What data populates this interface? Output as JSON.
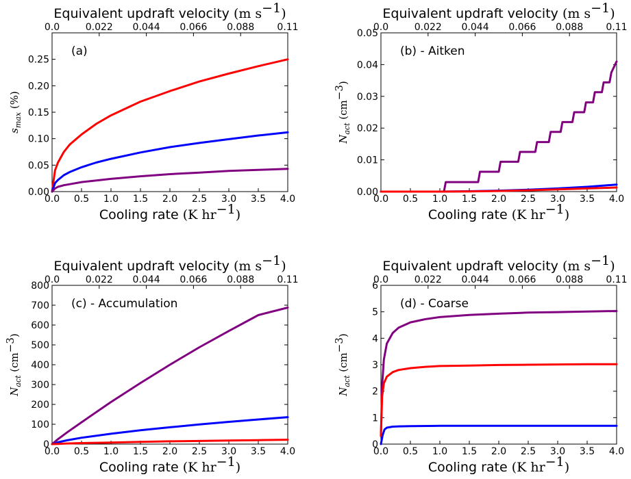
{
  "chart_data": [
    {
      "type": "line",
      "panel_label": "(a)",
      "xlabel": "Cooling rate",
      "xunit": "(K hr",
      "top_xlabel": "Equivalent updraft velocity",
      "top_xunit": "(m s",
      "ylabel_symbol": "s",
      "ylabel_sub": "max",
      "ylabel_unit": " (%)",
      "xlim": [
        0,
        4
      ],
      "ylim": [
        0,
        0.3
      ],
      "xticks": [
        "0.0",
        "0.5",
        "1.0",
        "1.5",
        "2.0",
        "2.5",
        "3.0",
        "3.5",
        "4.0"
      ],
      "yticks": [
        "0.00",
        "0.05",
        "0.10",
        "0.15",
        "0.20",
        "0.25"
      ],
      "ytick_values": [
        0,
        0.05,
        0.1,
        0.15,
        0.2,
        0.25
      ],
      "top_xticks": [
        "0.0",
        "0.022",
        "0.044",
        "0.066",
        "0.088",
        "0.11"
      ],
      "x": [
        0.0,
        0.05,
        0.1,
        0.2,
        0.3,
        0.5,
        0.75,
        1.0,
        1.5,
        2.0,
        2.5,
        3.0,
        3.5,
        4.0
      ],
      "series": [
        {
          "color": "#ff0000",
          "values": [
            0.0,
            0.04,
            0.055,
            0.075,
            0.089,
            0.108,
            0.128,
            0.144,
            0.17,
            0.19,
            0.208,
            0.223,
            0.237,
            0.25
          ]
        },
        {
          "color": "#0000ff",
          "values": [
            0.0,
            0.016,
            0.022,
            0.031,
            0.037,
            0.046,
            0.055,
            0.062,
            0.074,
            0.084,
            0.092,
            0.099,
            0.106,
            0.112
          ]
        },
        {
          "color": "#800080",
          "values": [
            0.0,
            0.006,
            0.009,
            0.012,
            0.014,
            0.018,
            0.021,
            0.024,
            0.029,
            0.033,
            0.036,
            0.039,
            0.041,
            0.043
          ]
        }
      ]
    },
    {
      "type": "line",
      "panel_label": "(b) - Aitken",
      "xlabel": "Cooling rate",
      "xunit": "(K hr",
      "top_xlabel": "Equivalent updraft velocity",
      "top_xunit": "(m s",
      "ylabel_symbol": "N",
      "ylabel_sub": "act",
      "ylabel_unit": " (cm",
      "xlim": [
        0,
        4
      ],
      "ylim": [
        0,
        0.05
      ],
      "xticks": [
        "0.0",
        "0.5",
        "1.0",
        "1.5",
        "2.0",
        "2.5",
        "3.0",
        "3.5",
        "4.0"
      ],
      "yticks": [
        "0.00",
        "0.01",
        "0.02",
        "0.03",
        "0.04",
        "0.05"
      ],
      "ytick_values": [
        0,
        0.01,
        0.02,
        0.03,
        0.04,
        0.05
      ],
      "top_xticks": [
        "0.0",
        "0.022",
        "0.044",
        "0.066",
        "0.088",
        "0.11"
      ],
      "series": [
        {
          "color": "#800080",
          "x": [
            0.0,
            1.07,
            1.1,
            1.65,
            1.68,
            2.0,
            2.03,
            2.33,
            2.36,
            2.62,
            2.65,
            2.85,
            2.88,
            3.05,
            3.08,
            3.25,
            3.28,
            3.45,
            3.48,
            3.6,
            3.63,
            3.75,
            3.78,
            3.88,
            3.91,
            4.0
          ],
          "values": [
            0.0,
            0.0,
            0.003,
            0.003,
            0.00625,
            0.00625,
            0.0094,
            0.0094,
            0.0125,
            0.0125,
            0.0156,
            0.0156,
            0.0188,
            0.0188,
            0.0219,
            0.0219,
            0.025,
            0.025,
            0.0281,
            0.0281,
            0.0313,
            0.0313,
            0.0344,
            0.0344,
            0.0375,
            0.041
          ]
        },
        {
          "color": "#0000ff",
          "x": [
            0.0,
            1.0,
            1.5,
            2.0,
            2.5,
            3.0,
            3.5,
            4.0
          ],
          "values": [
            0.0,
            0.0,
            0.0001,
            0.0003,
            0.0006,
            0.001,
            0.0015,
            0.0022
          ]
        },
        {
          "color": "#ff0000",
          "x": [
            0.0,
            1.0,
            1.5,
            2.0,
            2.5,
            3.0,
            3.5,
            4.0
          ],
          "values": [
            0.0,
            0.0,
            5e-05,
            0.0002,
            0.0004,
            0.0007,
            0.001,
            0.0013
          ]
        }
      ]
    },
    {
      "type": "line",
      "panel_label": "(c) - Accumulation",
      "xlabel": "Cooling rate",
      "xunit": "(K hr",
      "top_xlabel": "Equivalent updraft velocity",
      "top_xunit": "(m s",
      "ylabel_symbol": "N",
      "ylabel_sub": "act",
      "ylabel_unit": " (cm",
      "xlim": [
        0,
        4
      ],
      "ylim": [
        0,
        800
      ],
      "xticks": [
        "0.0",
        "0.5",
        "1.0",
        "1.5",
        "2.0",
        "2.5",
        "3.0",
        "3.5",
        "4.0"
      ],
      "yticks": [
        "0",
        "100",
        "200",
        "300",
        "400",
        "500",
        "600",
        "700",
        "800"
      ],
      "ytick_values": [
        0,
        100,
        200,
        300,
        400,
        500,
        600,
        700,
        800
      ],
      "top_xticks": [
        "0.0",
        "0.022",
        "0.044",
        "0.066",
        "0.088",
        "0.11"
      ],
      "x": [
        0.0,
        0.1,
        0.25,
        0.5,
        1.0,
        1.5,
        2.0,
        2.5,
        3.0,
        3.5,
        4.0
      ],
      "series": [
        {
          "color": "#800080",
          "values": [
            0,
            25,
            58,
            110,
            212,
            308,
            400,
            488,
            570,
            650,
            688
          ]
        },
        {
          "color": "#0000ff",
          "values": [
            0,
            9,
            19,
            32,
            52,
            70,
            85,
            99,
            112,
            124,
            136
          ]
        },
        {
          "color": "#ff0000",
          "values": [
            0,
            1,
            3,
            5,
            8,
            11,
            14,
            16,
            18,
            20,
            22
          ]
        }
      ]
    },
    {
      "type": "line",
      "panel_label": "(d) - Coarse",
      "xlabel": "Cooling rate",
      "xunit": "(K hr",
      "top_xlabel": "Equivalent updraft velocity",
      "top_xunit": "(m s",
      "ylabel_symbol": "N",
      "ylabel_sub": "act",
      "ylabel_unit": " (cm",
      "xlim": [
        0,
        4
      ],
      "ylim": [
        0,
        6
      ],
      "xticks": [
        "0.0",
        "0.5",
        "1.0",
        "1.5",
        "2.0",
        "2.5",
        "3.0",
        "3.5",
        "4.0"
      ],
      "yticks": [
        "0",
        "1",
        "2",
        "3",
        "4",
        "5",
        "6"
      ],
      "ytick_values": [
        0,
        1,
        2,
        3,
        4,
        5,
        6
      ],
      "top_xticks": [
        "0.0",
        "0.022",
        "0.044",
        "0.066",
        "0.088",
        "0.11"
      ],
      "series": [
        {
          "color": "#800080",
          "x": [
            0.0,
            0.02,
            0.05,
            0.1,
            0.2,
            0.3,
            0.5,
            0.75,
            1.0,
            1.5,
            2.0,
            2.5,
            3.0,
            3.5,
            4.0
          ],
          "values": [
            0.3,
            2.2,
            3.2,
            3.8,
            4.2,
            4.4,
            4.6,
            4.72,
            4.8,
            4.88,
            4.93,
            4.97,
            4.99,
            5.01,
            5.03
          ]
        },
        {
          "color": "#ff0000",
          "x": [
            0.0,
            0.02,
            0.05,
            0.1,
            0.2,
            0.3,
            0.5,
            0.75,
            1.0,
            1.5,
            2.0,
            2.5,
            3.0,
            3.5,
            4.0
          ],
          "values": [
            0.3,
            1.8,
            2.3,
            2.55,
            2.72,
            2.8,
            2.87,
            2.92,
            2.95,
            2.97,
            2.99,
            3.0,
            3.01,
            3.02,
            3.02
          ]
        },
        {
          "color": "#0000ff",
          "x": [
            0.0,
            0.03,
            0.06,
            0.1,
            0.2,
            0.3,
            0.5,
            1.0,
            1.5,
            2.0,
            2.5,
            3.0,
            3.5,
            4.0
          ],
          "values": [
            0.0,
            0.35,
            0.55,
            0.62,
            0.66,
            0.67,
            0.68,
            0.69,
            0.69,
            0.69,
            0.69,
            0.69,
            0.69,
            0.69
          ]
        }
      ]
    }
  ]
}
